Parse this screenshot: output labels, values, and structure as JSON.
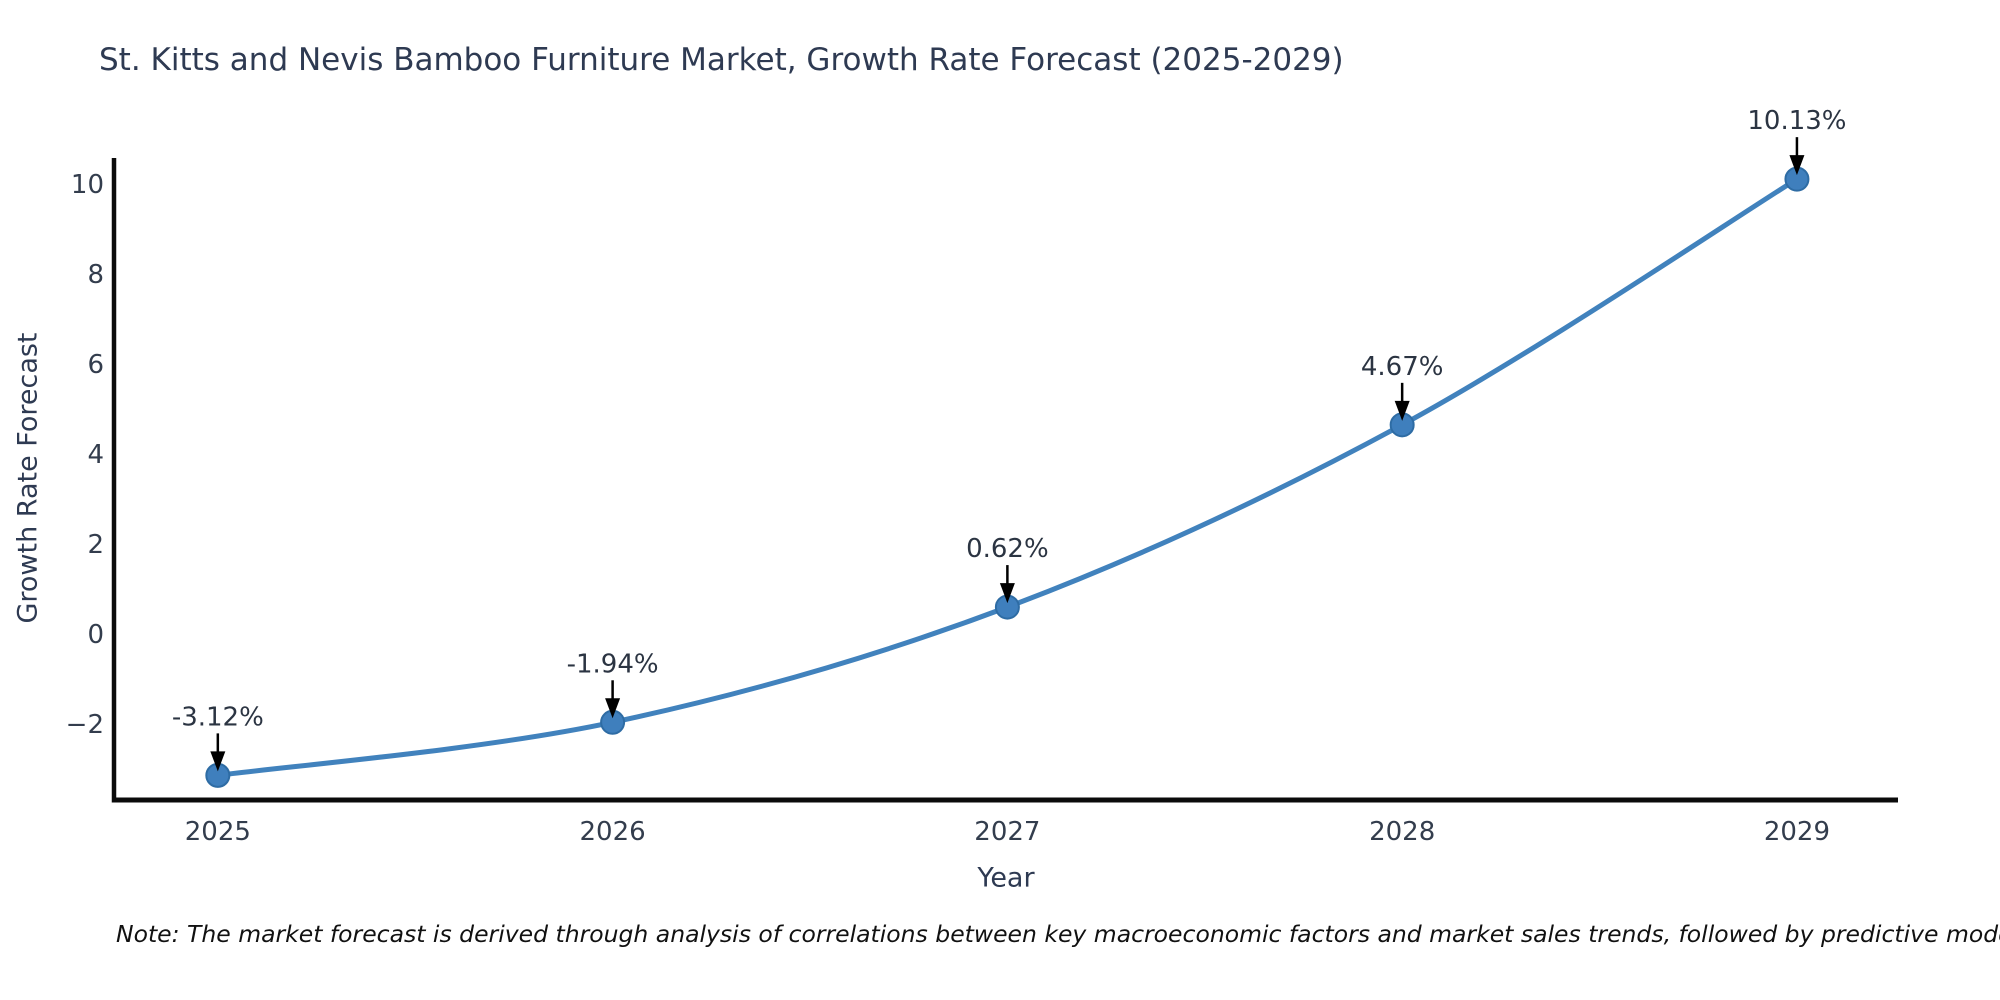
{
  "title": "St. Kitts and Nevis Bamboo Furniture Market, Growth Rate Forecast (2025-2029)",
  "note": "Note: The market forecast is derived through analysis of correlations between key macroeconomic factors and market sales trends, followed by predictive modeling to project future sales",
  "chart_data": {
    "type": "line",
    "title": "St. Kitts and Nevis Bamboo Furniture Market, Growth Rate Forecast (2025-2029)",
    "xlabel": "Year",
    "ylabel": "Growth Rate Forecast",
    "categories": [
      2025,
      2026,
      2027,
      2028,
      2029
    ],
    "series": [
      {
        "name": "Growth Rate Forecast",
        "values": [
          -3.12,
          -1.94,
          0.62,
          4.67,
          10.13
        ],
        "point_labels": [
          "-3.12%",
          "-1.94%",
          "0.62%",
          "4.67%",
          "10.13%"
        ]
      }
    ],
    "yticks": [
      -2,
      0,
      2,
      4,
      6,
      8,
      10
    ],
    "xlim": [
      2024.737,
      2029.256
    ],
    "ylim": [
      -3.667,
      10.6
    ],
    "grid": false,
    "legend": "none",
    "annotations": "value labels with downward arrows above each point",
    "colors": {
      "line": "#4182bd",
      "marker_fill": "#3f7fbd",
      "marker_edge": "#2e6ca4",
      "arrow": "#000000",
      "axis_spine": "#0b0b0b",
      "tick_label": "#333d4d",
      "annotation_text": "#2b3442",
      "title_text": "#2e3a52"
    }
  }
}
